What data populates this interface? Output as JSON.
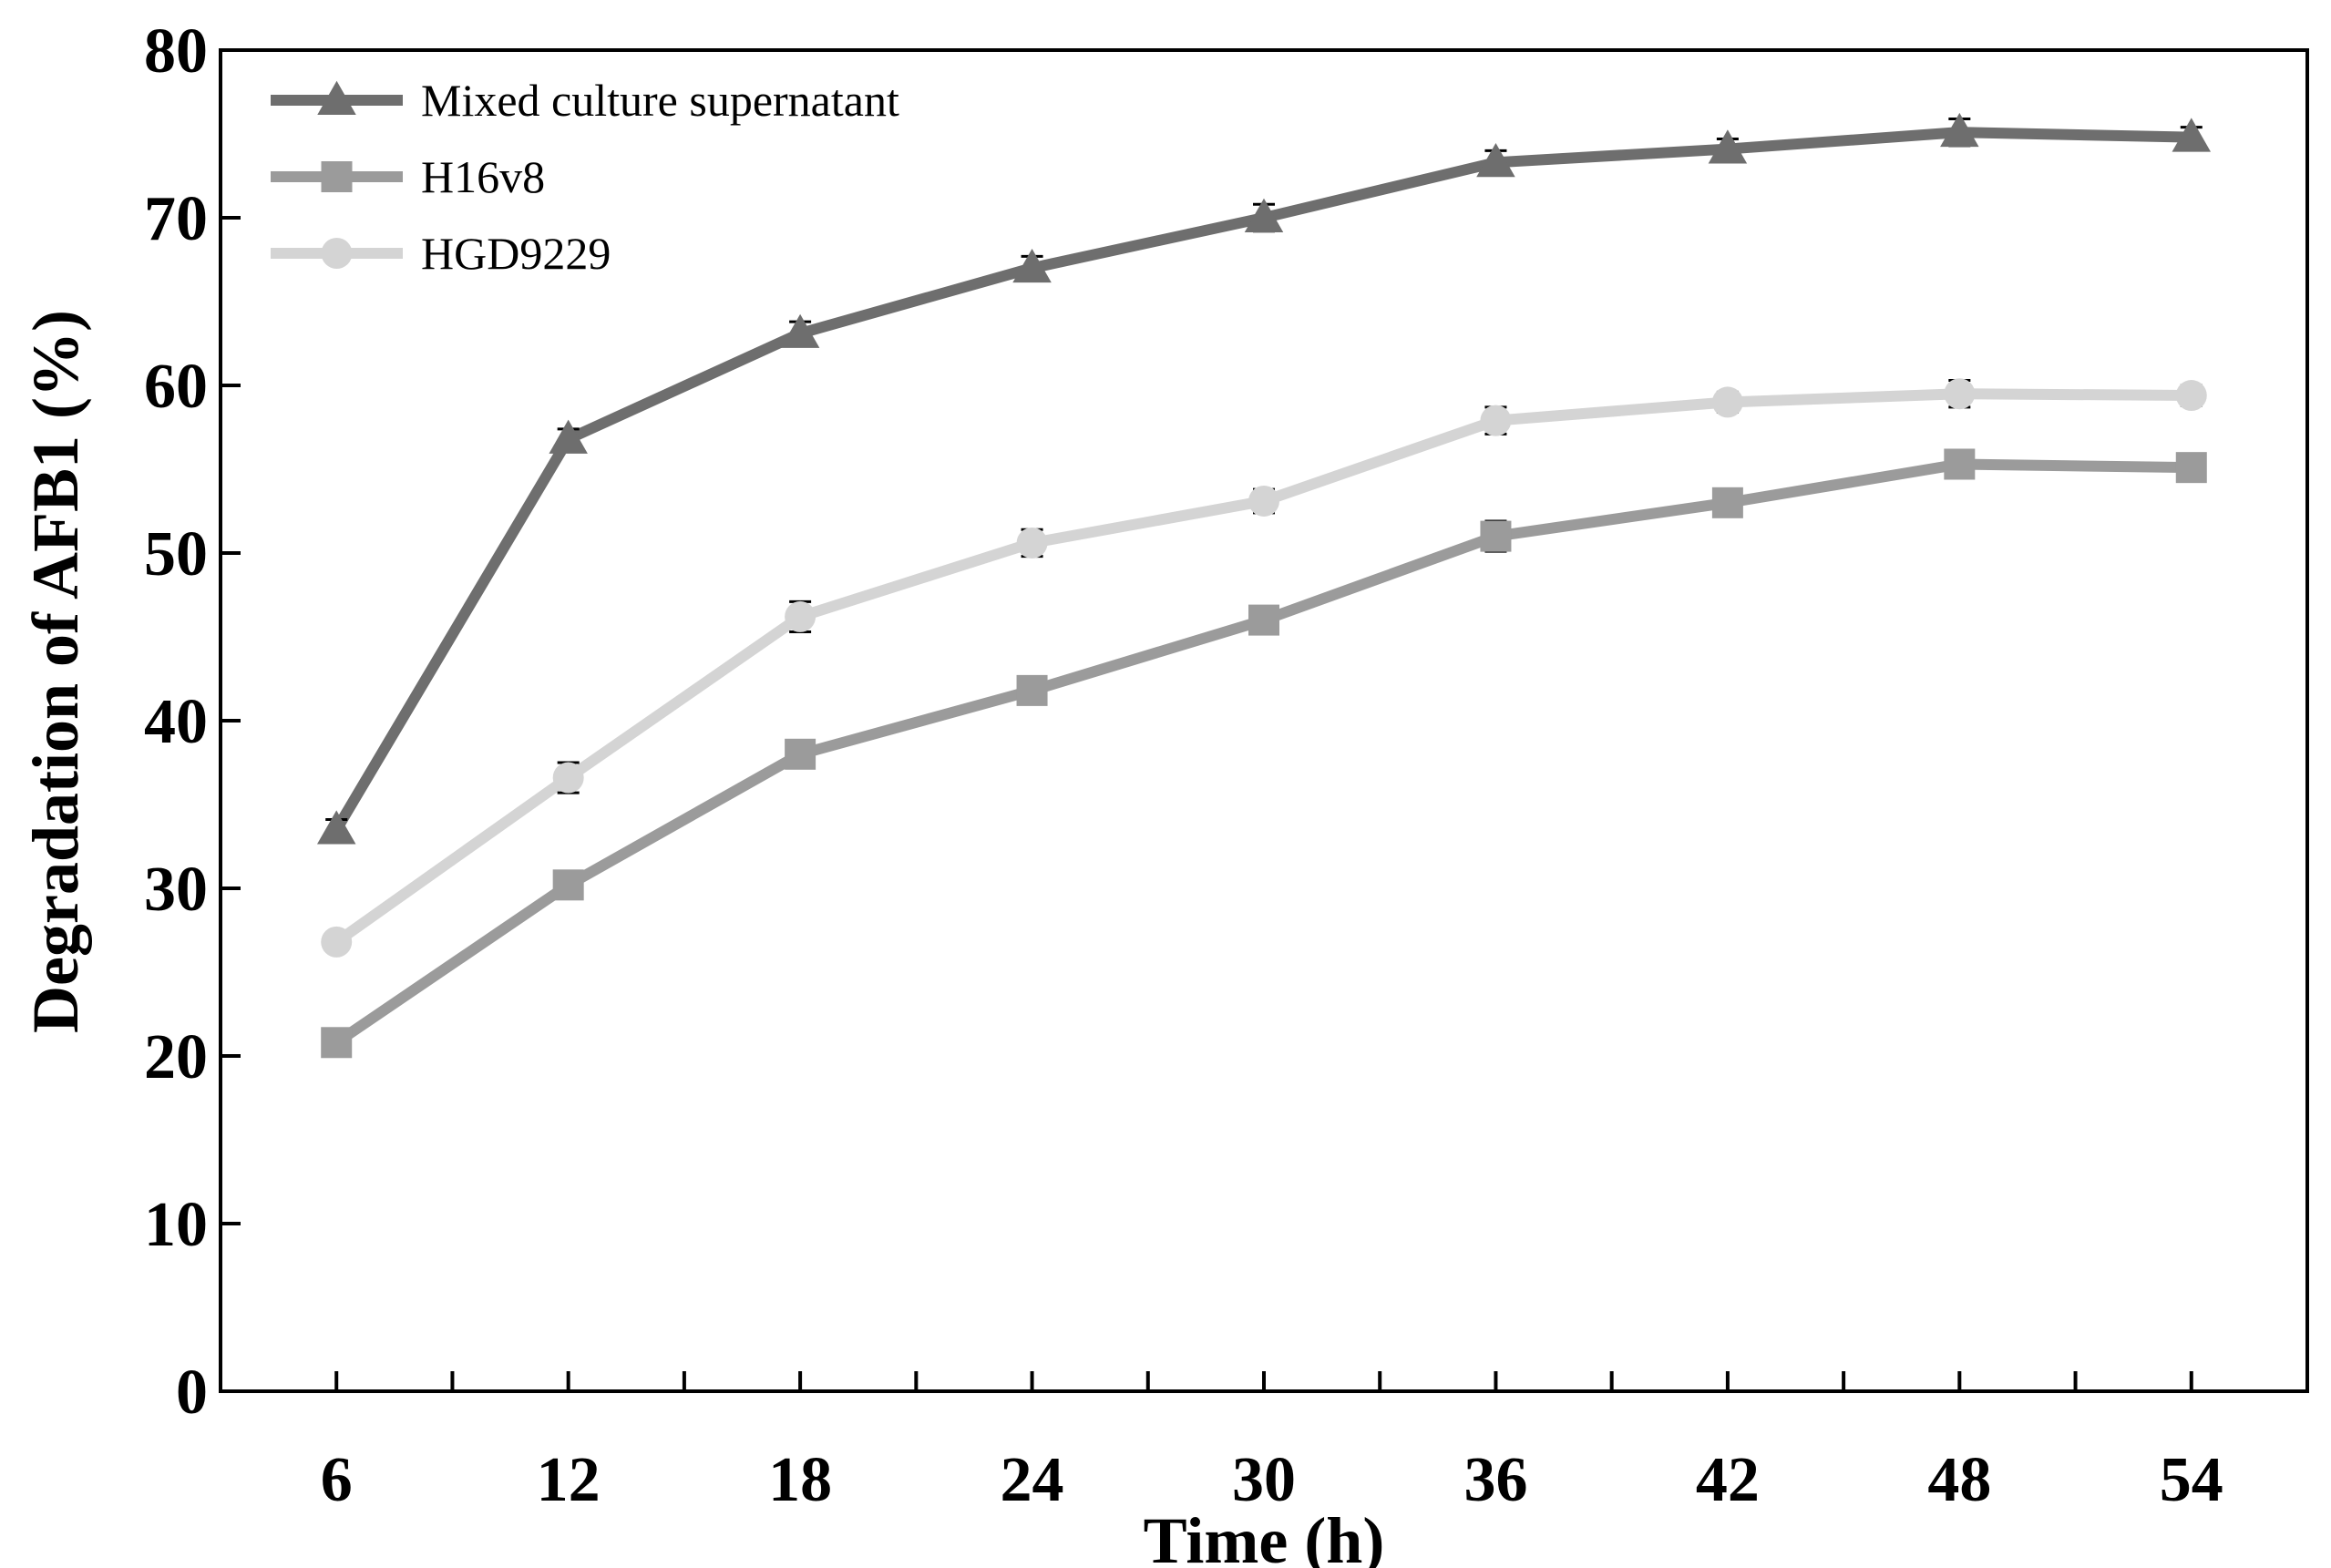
{
  "chart_data": {
    "type": "line",
    "title": "",
    "xlabel": "Time (h)",
    "ylabel": "Degradation of AFB1 (%)",
    "x": [
      6,
      12,
      18,
      24,
      30,
      36,
      42,
      48,
      54
    ],
    "xlim": [
      3,
      57
    ],
    "ylim": [
      0,
      80
    ],
    "yticks": [
      0,
      10,
      20,
      30,
      40,
      50,
      60,
      70,
      80
    ],
    "legend_position": "top-left",
    "grid": false,
    "series": [
      {
        "name": "Mixed culture supernatant",
        "marker": "triangle",
        "color": "#6e6e6e",
        "values": [
          33.5,
          56.8,
          63.1,
          67.0,
          70.0,
          73.3,
          74.1,
          75.1,
          74.8
        ],
        "errors": [
          0.6,
          0.6,
          0.7,
          0.7,
          0.8,
          0.7,
          0.6,
          0.8,
          0.6
        ]
      },
      {
        "name": "H16v8",
        "marker": "square",
        "color": "#9b9b9b",
        "values": [
          20.8,
          30.2,
          38.0,
          41.8,
          46.0,
          51.0,
          53.0,
          55.3,
          55.1
        ],
        "errors": [
          0.5,
          0.7,
          0.6,
          0.6,
          0.6,
          0.9,
          0.6,
          0.7,
          0.6
        ]
      },
      {
        "name": "HGD9229",
        "marker": "circle",
        "color": "#d4d4d4",
        "values": [
          26.8,
          36.6,
          46.2,
          50.6,
          53.1,
          57.9,
          59.0,
          59.5,
          59.4
        ],
        "errors": [
          0.5,
          0.9,
          0.9,
          0.8,
          0.7,
          0.8,
          0.6,
          0.8,
          0.6
        ]
      }
    ]
  }
}
